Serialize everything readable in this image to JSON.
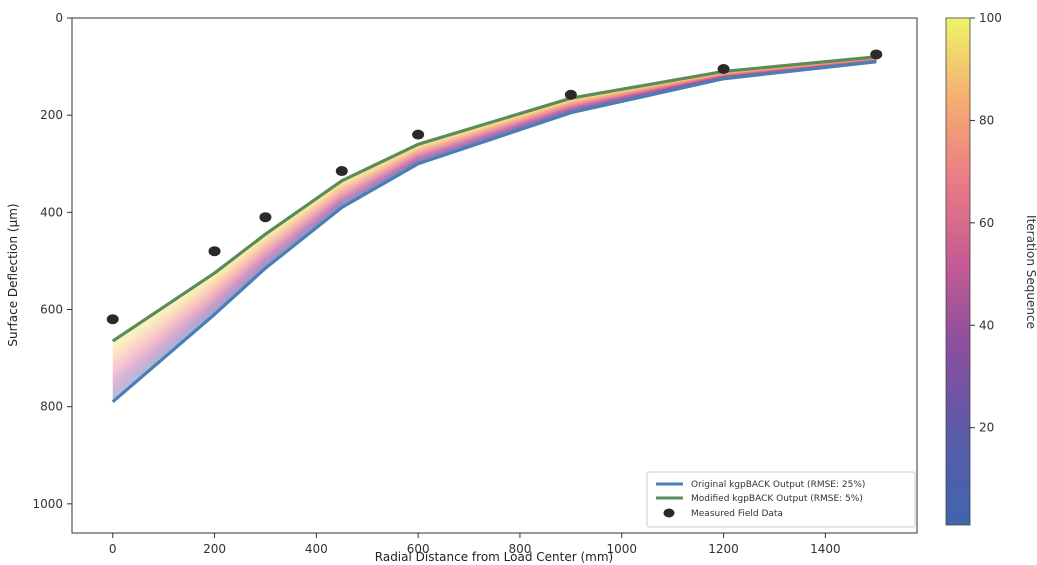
{
  "chart_data": {
    "type": "line",
    "xlabel": "Radial Distance from Load Center (mm)",
    "ylabel": "Surface Deflection (μm)",
    "xlim": [
      -80,
      1580
    ],
    "ylim": [
      1060,
      0
    ],
    "y_inverted": true,
    "x_ticks": [
      0,
      200,
      400,
      600,
      800,
      1000,
      1200,
      1400
    ],
    "y_ticks": [
      0,
      200,
      400,
      600,
      800,
      1000
    ],
    "grid": false,
    "legend_position": "bottom-right",
    "x": [
      0,
      200,
      300,
      450,
      600,
      900,
      1200,
      1500
    ],
    "series": [
      {
        "name": "Original kgpBACK Output (RMSE: 25%)",
        "values": [
          790,
          610,
          515,
          390,
          300,
          195,
          125,
          90
        ],
        "color": "#4a7fb5",
        "kind": "line"
      },
      {
        "name": "Modified kgpBACK Output (RMSE: 5%)",
        "values": [
          665,
          525,
          445,
          335,
          260,
          165,
          110,
          80
        ],
        "color": "#5b8a5b",
        "kind": "line"
      },
      {
        "name": "Measured Field Data",
        "values": [
          620,
          480,
          410,
          315,
          240,
          158,
          105,
          75
        ],
        "color": "#2a2a2a",
        "kind": "scatter"
      }
    ],
    "iterations": {
      "count": 100,
      "colormap": "plasma",
      "color_stops": [
        "#3f66ac",
        "#7a4fa1",
        "#b64f9a",
        "#e8708a",
        "#f59b79",
        "#f7cb6c",
        "#eef06a"
      ]
    },
    "colorbar": {
      "label": "Iteration Sequence",
      "range": [
        1,
        100
      ],
      "ticks": [
        20,
        40,
        60,
        80,
        100
      ]
    }
  }
}
